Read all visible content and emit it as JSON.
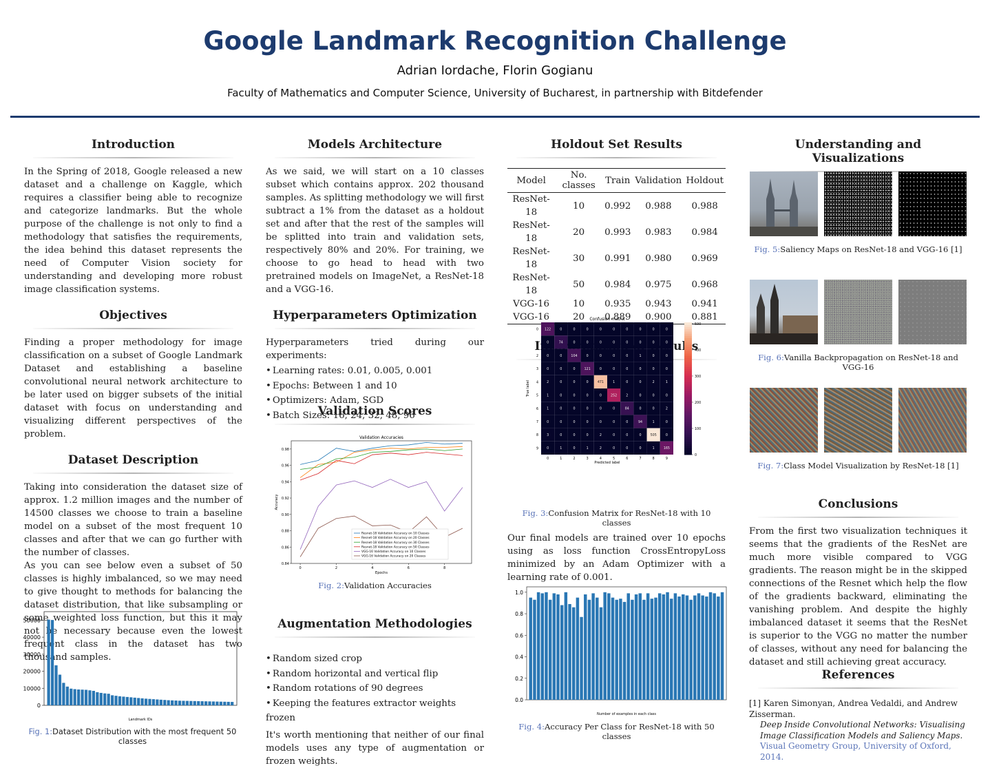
{
  "header": {
    "title": "Google Landmark Recognition Challenge",
    "authors": "Adrian Iordache, Florin Gogianu",
    "affiliation": "Faculty of Mathematics and Computer Science, University of Bucharest, in partnership with Bitdefender"
  },
  "introduction": {
    "title": "Introduction",
    "text": "In the Spring of 2018, Google released a new dataset and a challenge on Kaggle, which requires a classifier being able to recognize and categorize landmarks. But the whole purpose of the challenge is not only to find a methodology that satisfies the requirements, the idea behind this dataset represents the need of Computer Vision society for understanding and developing more robust image classification systems."
  },
  "objectives": {
    "title": "Objectives",
    "text": "Finding a proper methodology for image classification on a subset of Google Landmark Dataset and establishing a baseline convolutional neural network architecture to be later used on bigger subsets of the initial dataset with focus on understanding and visualizing different perspectives of the problem."
  },
  "dataset": {
    "title": "Dataset Description",
    "text1": "Taking into consideration the dataset size of approx. 1.2 million images and the number of 14500 classes we choose to train a baseline model on a subset of the most frequent 10 classes and after that we can go further with the number of classes.",
    "text2": "As you can see below even a subset of 50 classes is highly imbalanced, so we may need to give thought to methods for balancing the dataset distribution, that like subsampling or some weighted loss function, but this it may not be necessary because even the lowest frequent class in the dataset has two thousand samples."
  },
  "models": {
    "title": "Models Architecture",
    "text": "As we said, we will start on a 10 classes subset which contains approx. 202 thousand samples. As splitting methodology we will first subtract a 1% from the dataset as a holdout set and after that the rest of the samples will be splitted into train and validation sets, respectively 80% and 20%. For training, we choose to go head to head with two pretrained models on ImageNet, a ResNet-18 and a VGG-16."
  },
  "hyper": {
    "title": "Hyperparameters Optimization",
    "intro": "Hyperparameters tried during our experiments:",
    "items": [
      "Learning rates: 0.01, 0.005, 0.001",
      "Epochs: Between 1 and 10",
      "Optimizers: Adam, SGD",
      "Batch Sizes: 16, 24, 32, 48, 96"
    ]
  },
  "validation": {
    "title": "Validation Scores"
  },
  "augmentation": {
    "title": "Augmentation Methodologies",
    "items": [
      "Random sized crop",
      "Random horizontal and vertical flip",
      "Random rotations of 90 degrees",
      "Keeping the features extractor weights frozen"
    ],
    "text": "It's worth mentioning that neither of our final models uses any type of augmentation or frozen weights."
  },
  "holdout": {
    "title": "Holdout Set Results",
    "headers": [
      "Model",
      "No. classes",
      "Train",
      "Validation",
      "Holdout"
    ],
    "rows": [
      [
        "ResNet-18",
        "10",
        "0.992",
        "0.988",
        "0.988"
      ],
      [
        "ResNet-18",
        "20",
        "0.993",
        "0.983",
        "0.984"
      ],
      [
        "ResNet-18",
        "30",
        "0.991",
        "0.980",
        "0.969"
      ],
      [
        "ResNet-18",
        "50",
        "0.984",
        "0.975",
        "0.968"
      ],
      [
        "VGG-16",
        "10",
        "0.935",
        "0.943",
        "0.941"
      ],
      [
        "VGG-16",
        "20",
        "0.889",
        "0.900",
        "0.881"
      ]
    ]
  },
  "interpretation": {
    "title": "Interpretation of Results",
    "text": "Our final models are trained over 10 epochs using as loss function CrossEntropyLoss minimized by an Adam Optimizer with a learning rate of 0.001."
  },
  "understanding": {
    "title": "Understanding and Visualizations"
  },
  "conclusions": {
    "title": "Conclusions",
    "text": "From the first two visualization techniques it seems that the gradients of the ResNet are much more visible compared to VGG gradients. The reason might be in the skipped connections of the Resnet which help the flow of the gradients backward, eliminating the vanishing problem. And despite the highly imbalanced dataset it seems that the ResNet is superior to the VGG no matter the number of classes, without any need for balancing the dataset and still achieving great accuracy."
  },
  "references": {
    "title": "References",
    "num": "[1]",
    "authors": "Karen Simonyan, Andrea Vedaldi, and Andrew Zisserman.",
    "paper": "Deep Inside Convolutional Networks: Visualising Image Classification Models and Saliency Maps.",
    "venue": "Visual Geometry Group, University of Oxford, 2014."
  },
  "figures": {
    "fig1": {
      "label": "Fig. 1:",
      "text": "Dataset Distribution with the most frequent 50 classes"
    },
    "fig2": {
      "label": "Fig. 2:",
      "text": "Validation Accuracies"
    },
    "fig3": {
      "label": "Fig. 3:",
      "text": "Confusion Matrix for ResNet-18 with 10 classes"
    },
    "fig4": {
      "label": "Fig. 4:",
      "text": "Accuracy Per Class for ResNet-18 with 50 classes"
    },
    "fig5": {
      "label": "Fig. 5:",
      "text": "Saliency Maps on ResNet-18 and VGG-16 [1]"
    },
    "fig6": {
      "label": "Fig. 6:",
      "text": "Vanilla Backpropagation on ResNet-18 and VGG-16"
    },
    "fig7": {
      "label": "Fig. 7:",
      "text": "Class Model Visualization by ResNet-18 [1]"
    }
  },
  "colors": {
    "accent": "#1d3b6e",
    "bar": "#2a77b4",
    "caption_link": "#5a74b8"
  },
  "chart_data": [
    {
      "id": "fig1",
      "type": "bar",
      "xlabel": "Landmark IDs",
      "ylabel": "",
      "ylim": [
        0,
        55000
      ],
      "yticks": [
        0,
        10000,
        20000,
        30000,
        40000,
        50000
      ],
      "values": [
        50300,
        50100,
        23500,
        18000,
        13200,
        11000,
        9800,
        9500,
        9300,
        9200,
        9100,
        8800,
        8500,
        7700,
        7300,
        7000,
        6800,
        5900,
        5600,
        5300,
        5100,
        4900,
        4700,
        4500,
        4300,
        4100,
        3900,
        3750,
        3600,
        3450,
        3300,
        3150,
        3000,
        2900,
        2800,
        2700,
        2650,
        2600,
        2550,
        2500,
        2450,
        2400,
        2350,
        2300,
        2250,
        2200,
        2150,
        2100,
        2050,
        2000
      ]
    },
    {
      "id": "fig2",
      "type": "line",
      "title": "Validation Accuracies",
      "xlabel": "Epochs",
      "ylabel": "Accuracy",
      "xlim": [
        -0.5,
        9.5
      ],
      "ylim": [
        0.84,
        0.99
      ],
      "xticks": [
        0,
        2,
        4,
        6,
        8
      ],
      "yticks": [
        0.84,
        0.86,
        0.88,
        0.9,
        0.92,
        0.94,
        0.96,
        0.98
      ],
      "x": [
        0,
        1,
        2,
        3,
        4,
        5,
        6,
        7,
        8,
        9
      ],
      "series": [
        {
          "name": "Resnet-18 Validation Accuracy on 10 Classes",
          "color": "#1f77b4",
          "values": [
            0.961,
            0.966,
            0.981,
            0.977,
            0.981,
            0.984,
            0.985,
            0.988,
            0.986,
            0.987
          ]
        },
        {
          "name": "Resnet-18 Validation Accuracy on 20 Classes",
          "color": "#ff7f0e",
          "values": [
            0.945,
            0.961,
            0.964,
            0.976,
            0.979,
            0.981,
            0.98,
            0.982,
            0.982,
            0.983
          ]
        },
        {
          "name": "Resnet-18 Validation Accuracy on 30 Classes",
          "color": "#2ca02c",
          "values": [
            0.955,
            0.958,
            0.968,
            0.97,
            0.976,
            0.977,
            0.979,
            0.98,
            0.978,
            0.98
          ]
        },
        {
          "name": "Resnet-18 Validation Accuracy on 50 Classes",
          "color": "#d62728",
          "values": [
            0.942,
            0.95,
            0.966,
            0.962,
            0.973,
            0.975,
            0.973,
            0.976,
            0.974,
            0.972
          ]
        },
        {
          "name": "VGG-16 Validation Accuracy on 10 Classes",
          "color": "#9467bd",
          "values": [
            0.857,
            0.91,
            0.936,
            0.941,
            0.933,
            0.943,
            0.933,
            0.94,
            0.904,
            0.933
          ]
        },
        {
          "name": "VGG-16 Validation Accuracy on 20 Classes",
          "color": "#8c564b",
          "values": [
            0.848,
            0.883,
            0.895,
            0.898,
            0.886,
            0.887,
            0.878,
            0.897,
            0.872,
            0.883
          ]
        }
      ]
    },
    {
      "id": "fig3",
      "type": "heatmap",
      "title": "Confusion matrix",
      "xlabel": "Predicted label",
      "ylabel": "True label",
      "labels": [
        "0",
        "1",
        "2",
        "3",
        "4",
        "5",
        "6",
        "7",
        "8",
        "9"
      ],
      "colorbar_ticks": [
        0,
        100,
        200,
        300,
        400,
        500
      ],
      "matrix": [
        [
          122,
          0,
          0,
          0,
          0,
          0,
          0,
          0,
          0,
          0
        ],
        [
          0,
          74,
          0,
          0,
          0,
          0,
          0,
          0,
          0,
          0
        ],
        [
          0,
          0,
          104,
          0,
          0,
          0,
          0,
          1,
          0,
          0
        ],
        [
          0,
          0,
          0,
          121,
          0,
          0,
          0,
          0,
          0,
          0
        ],
        [
          2,
          0,
          0,
          0,
          471,
          1,
          0,
          0,
          2,
          1
        ],
        [
          1,
          0,
          0,
          0,
          0,
          252,
          2,
          0,
          0,
          0
        ],
        [
          1,
          0,
          0,
          0,
          0,
          0,
          84,
          0,
          0,
          2
        ],
        [
          0,
          0,
          0,
          0,
          0,
          0,
          0,
          94,
          1,
          0
        ],
        [
          3,
          0,
          0,
          0,
          2,
          0,
          0,
          0,
          505,
          0
        ],
        [
          0,
          1,
          0,
          1,
          2,
          0,
          0,
          0,
          1,
          165
        ]
      ]
    },
    {
      "id": "fig4",
      "type": "bar",
      "xlabel": "Number of examples in each class",
      "ylabel": "",
      "ylim": [
        0,
        1.05
      ],
      "yticks": [
        0.0,
        0.2,
        0.4,
        0.6,
        0.8,
        1.0
      ],
      "values": [
        0.95,
        0.93,
        1.0,
        0.99,
        1.0,
        0.93,
        0.99,
        0.98,
        0.88,
        1.0,
        0.89,
        0.86,
        0.95,
        0.77,
        0.98,
        0.93,
        0.99,
        0.95,
        0.86,
        1.0,
        0.99,
        0.95,
        0.93,
        0.94,
        0.91,
        0.99,
        0.93,
        0.98,
        0.99,
        0.93,
        0.99,
        0.94,
        0.95,
        0.99,
        0.98,
        1.0,
        0.94,
        0.99,
        0.96,
        0.98,
        0.97,
        0.93,
        0.97,
        0.99,
        0.97,
        0.96,
        1.0,
        0.99,
        0.96,
        1.0
      ]
    }
  ]
}
